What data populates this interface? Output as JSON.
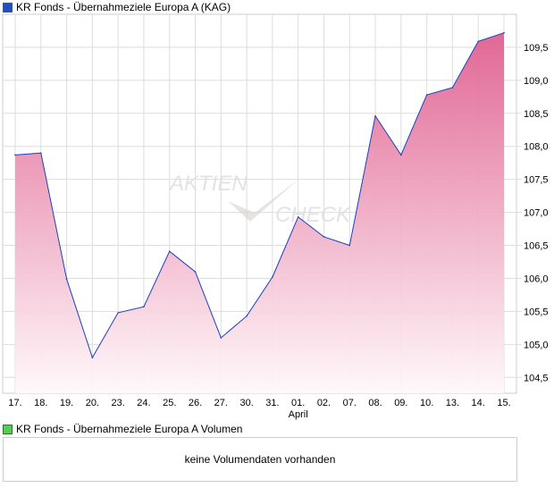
{
  "chart_data": {
    "type": "area",
    "title": "KR Fonds - Übernahmeziele Europa A (KAG)",
    "categories": [
      "17.",
      "18.",
      "19.",
      "20.",
      "23.",
      "24.",
      "25.",
      "26.",
      "27.",
      "30.",
      "31.",
      "01.",
      "02.",
      "07.",
      "08.",
      "09.",
      "10.",
      "13.",
      "14.",
      "15."
    ],
    "month_label": "April",
    "values": [
      107.87,
      107.9,
      105.99,
      104.8,
      105.48,
      105.57,
      106.41,
      106.1,
      105.1,
      105.43,
      106.02,
      106.93,
      106.63,
      106.5,
      108.46,
      107.87,
      108.78,
      108.89,
      109.59,
      109.72
    ],
    "yticks": [
      "104,5",
      "105,0",
      "105,5",
      "106,0",
      "106,5",
      "107,0",
      "107,5",
      "108,0",
      "108,5",
      "109,0",
      "109,5"
    ],
    "ylim": [
      104.26,
      110.0
    ],
    "grid": true,
    "line_color": "#1a3fbf",
    "fill_top": "#e06090",
    "legend_color": "#2050c0",
    "watermark": "AKTIEN CHECK"
  },
  "volume": {
    "title": "KR Fonds - Übernahmeziele Europa A Volumen",
    "message": "keine Volumendaten vorhanden",
    "legend_color": "#5c5"
  }
}
